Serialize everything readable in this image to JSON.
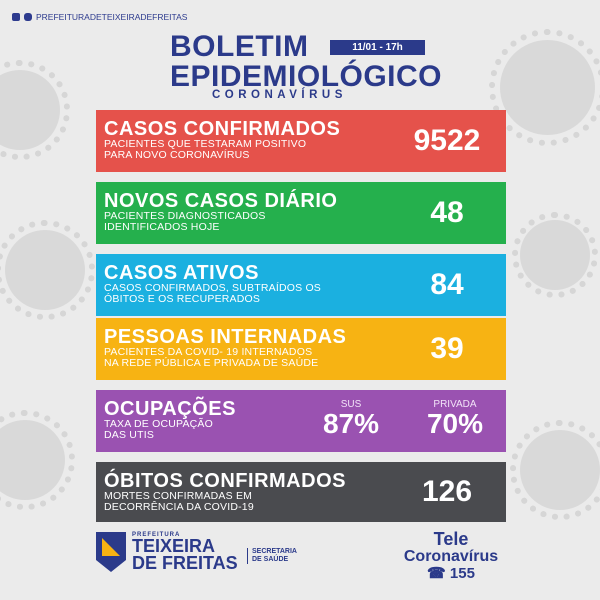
{
  "social_handle": "PREFEITURADETEIXEIRADEFREITAS",
  "header": {
    "title_line1": "BOLETIM",
    "title_line2": "EPIDEMIOLÓGICO",
    "subtitle": "CORONAVÍRUS",
    "date": "11/01 - 17h"
  },
  "cards": {
    "confirmed": {
      "title": "CASOS CONFIRMADOS",
      "desc1": "PACIENTES QUE TESTARAM POSITIVO",
      "desc2": "PARA NOVO CORONAVÍRUS",
      "value": "9522"
    },
    "new_cases": {
      "title": "NOVOS CASOS DIÁRIO",
      "desc1": "PACIENTES DIAGNOSTICADOS",
      "desc2": "IDENTIFICADOS HOJE",
      "value": "48"
    },
    "active": {
      "title": "CASOS ATIVOS",
      "desc1": "CASOS CONFIRMADOS, SUBTRAÍDOS OS",
      "desc2": "ÓBITOS E OS RECUPERADOS",
      "value": "84"
    },
    "hospitalized": {
      "title": "PESSOAS INTERNADAS",
      "desc1": "PACIENTES DA COVID- 19 INTERNADOS",
      "desc2": "NA REDE PÚBLICA E PRIVADA DE SAÚDE",
      "value": "39"
    },
    "occupancy": {
      "title": "OCUPAÇÕES",
      "desc1": "TAXA DE OCUPAÇÃO",
      "desc2": "DAS UTIs",
      "sus_label": "SUS",
      "sus_value": "87%",
      "private_label": "PRIVADA",
      "private_value": "70%"
    },
    "deaths": {
      "title": "ÓBITOS CONFIRMADOS",
      "desc1": "MORTES CONFIRMADAS EM",
      "desc2": "DECORRÊNCIA DA COVID-19",
      "value": "126"
    }
  },
  "footer": {
    "logo_small": "PREFEITURA",
    "logo_line1": "TEIXEIRA",
    "logo_line2": "DE FREITAS",
    "secretaria1": "SECRETARIA",
    "secretaria2": "DE SAÚDE",
    "tele1": "Tele",
    "tele2": "Coronavírus",
    "tele_number": "155"
  },
  "colors": {
    "confirmed": "#e5524b",
    "new_cases": "#25b04d",
    "active": "#1bb0e0",
    "hospitalized": "#f7b313",
    "occupancy": "#9a52b1",
    "deaths": "#4a4b4f",
    "brand": "#2b3a8a"
  },
  "icons": [
    "facebook-icon",
    "instagram-icon",
    "phone-icon",
    "virus-icon"
  ]
}
